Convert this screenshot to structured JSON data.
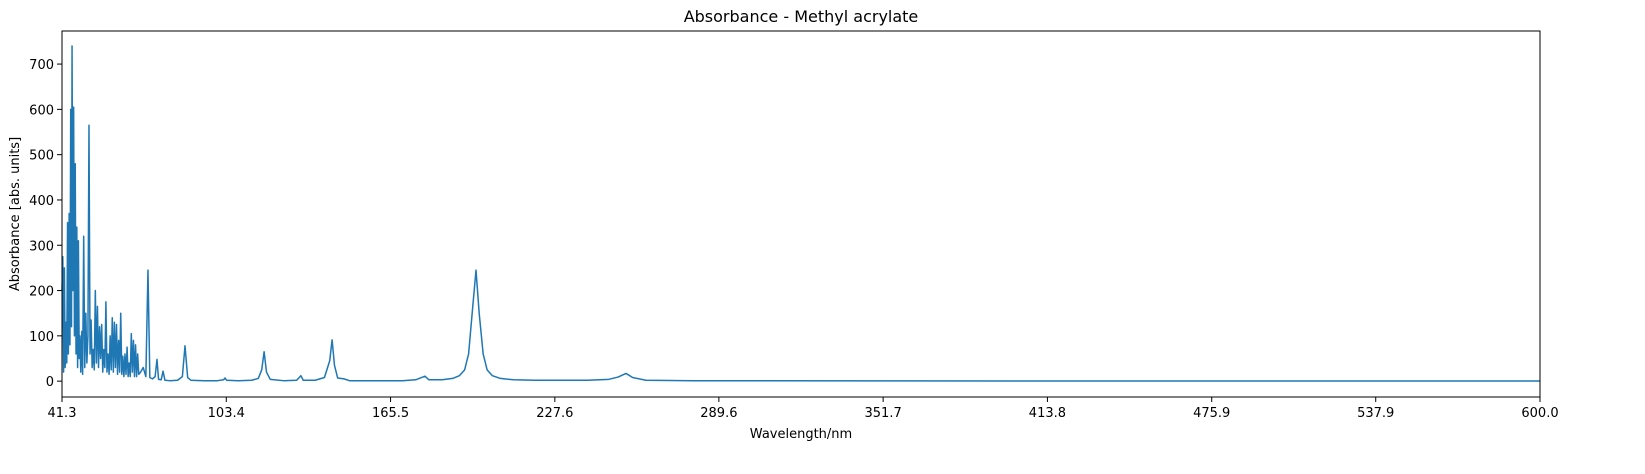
{
  "chart_data": {
    "type": "line",
    "title": "Absorbance - Methyl acrylate",
    "x_label": "Wavelength/nm",
    "y_label": "Absorbance [abs. units]",
    "xlim": [
      41.3,
      600
    ],
    "ylim": [
      -35,
      773
    ],
    "xticks": [
      41.3,
      103.4,
      165.5,
      227.6,
      289.6,
      351.7,
      413.8,
      475.9,
      537.9,
      {
        "value": 600,
        "label": "600.0"
      }
    ],
    "yticks": [
      0,
      100,
      200,
      300,
      400,
      500,
      600,
      700
    ],
    "series": [
      {
        "name": "Methyl acrylate",
        "color": "#1f77b4",
        "x": [
          41.3,
          41.6,
          41.9,
          42.2,
          42.5,
          42.8,
          43.1,
          43.4,
          43.7,
          44.0,
          44.3,
          44.6,
          44.9,
          45.1,
          45.4,
          45.7,
          46.0,
          46.3,
          46.6,
          46.9,
          47.2,
          47.5,
          47.8,
          48.1,
          48.4,
          48.8,
          49.1,
          49.5,
          49.9,
          50.3,
          50.7,
          51.1,
          51.5,
          51.9,
          52.3,
          52.7,
          53.1,
          53.5,
          53.9,
          54.3,
          54.7,
          55.1,
          55.5,
          55.9,
          56.3,
          56.7,
          57.1,
          57.5,
          57.9,
          58.3,
          58.7,
          59.1,
          59.5,
          59.9,
          60.3,
          60.7,
          61.1,
          61.5,
          61.9,
          62.3,
          62.7,
          63.1,
          63.5,
          63.9,
          64.3,
          64.7,
          65.1,
          65.5,
          65.9,
          66.3,
          66.7,
          67.1,
          67.5,
          67.9,
          68.3,
          68.7,
          69.1,
          69.5,
          69.9,
          70.3,
          71,
          72,
          73,
          73.8,
          74.5,
          75.5,
          76.5,
          77.2,
          77.8,
          78.8,
          79.5,
          80.2,
          82,
          85,
          86.8,
          87.8,
          88.8,
          90,
          95,
          100,
          102.4,
          102.9,
          103.5,
          108,
          113,
          115.5,
          116.8,
          117.7,
          118.6,
          120,
          125,
          130,
          131.6,
          132.5,
          137,
          140.5,
          142.5,
          143.4,
          144.3,
          145.5,
          147.9,
          150,
          160,
          170,
          175,
          178.5,
          180,
          185,
          189,
          191.5,
          193.5,
          195,
          196.5,
          197.8,
          199,
          200.5,
          202,
          204,
          207,
          212,
          220,
          240,
          248,
          251.5,
          254.5,
          257,
          262,
          280,
          350,
          450,
          600
        ],
        "values": [
          200,
          275,
          20,
          250,
          30,
          130,
          40,
          350,
          60,
          370,
          80,
          600,
          120,
          740,
          200,
          605,
          100,
          480,
          60,
          340,
          30,
          310,
          50,
          100,
          20,
          110,
          15,
          320,
          30,
          150,
          40,
          100,
          565,
          60,
          135,
          30,
          70,
          25,
          200,
          40,
          165,
          30,
          120,
          50,
          125,
          20,
          70,
          30,
          175,
          20,
          60,
          15,
          100,
          25,
          140,
          20,
          130,
          30,
          125,
          15,
          90,
          20,
          150,
          15,
          55,
          10,
          60,
          15,
          75,
          10,
          40,
          10,
          105,
          20,
          90,
          10,
          80,
          10,
          60,
          15,
          20,
          30,
          10,
          245,
          8,
          5,
          10,
          48,
          4,
          3,
          22,
          2,
          1,
          2,
          10,
          78,
          8,
          2,
          1,
          1,
          3,
          7,
          2,
          1,
          2,
          6,
          25,
          65,
          20,
          4,
          1,
          2,
          12,
          2,
          2,
          8,
          45,
          91,
          35,
          7,
          5,
          1,
          1,
          1,
          3,
          11,
          3,
          3,
          6,
          12,
          25,
          60,
          160,
          245,
          150,
          60,
          25,
          12,
          6,
          3,
          2,
          2,
          4,
          9,
          17,
          8,
          2,
          1,
          0.5,
          0.3,
          0.2
        ]
      }
    ]
  }
}
